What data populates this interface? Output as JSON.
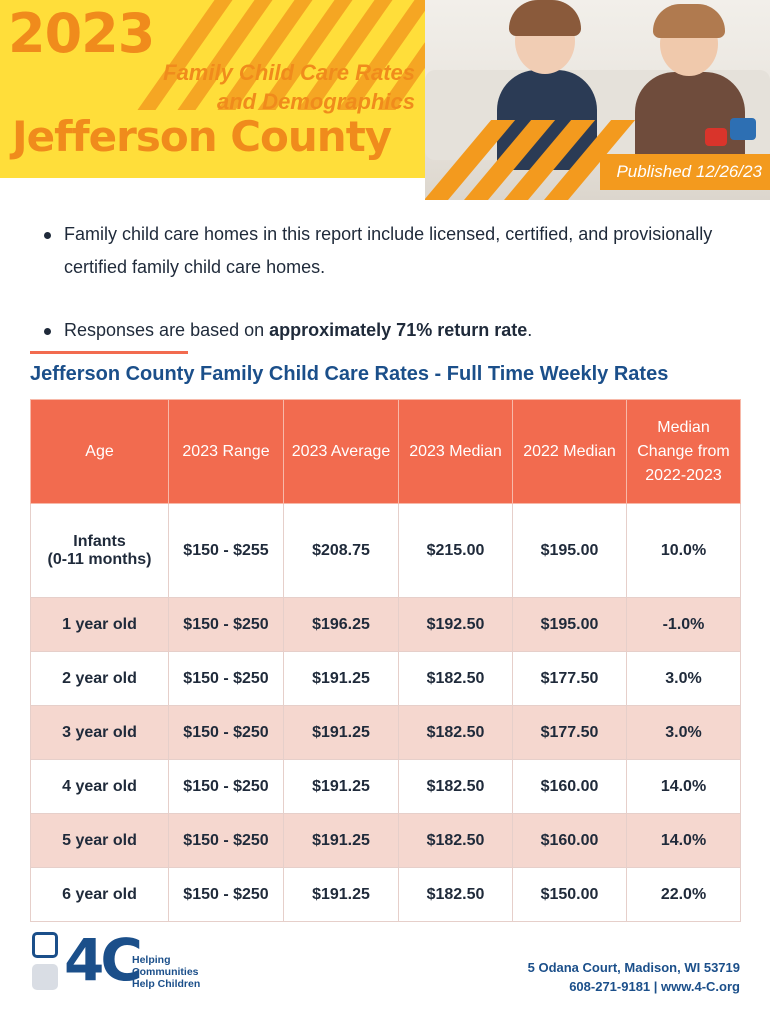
{
  "header": {
    "year": "2023",
    "subtitle_line1": "Family Child Care Rates",
    "subtitle_line2": "and Demographics",
    "county": "Jefferson County",
    "published": "Published 12/26/23"
  },
  "bullets": [
    {
      "text": "Family child care homes in this report include licensed, certified, and provisionally certified family child care homes."
    },
    {
      "prefix": "Responses are based on ",
      "bold": "approximately 71% return rate",
      "suffix": "."
    }
  ],
  "table": {
    "title": "Jefferson County Family Child Care Rates - Full Time Weekly Rates",
    "headers": [
      "Age",
      "2023 Range",
      "2023 Average",
      "2023 Median",
      "2022 Median",
      "Median Change from 2022-2023"
    ],
    "rows": [
      {
        "age_line1": "Infants",
        "age_line2": "(0-11 months)",
        "range": "$150 - $255",
        "average": "$208.75",
        "median_2023": "$215.00",
        "median_2022": "$195.00",
        "change": "10.0%"
      },
      {
        "age_line1": "1 year old",
        "range": "$150 - $250",
        "average": "$196.25",
        "median_2023": "$192.50",
        "median_2022": "$195.00",
        "change": "-1.0%"
      },
      {
        "age_line1": "2 year old",
        "range": "$150 - $250",
        "average": "$191.25",
        "median_2023": "$182.50",
        "median_2022": "$177.50",
        "change": "3.0%"
      },
      {
        "age_line1": "3 year old",
        "range": "$150 - $250",
        "average": "$191.25",
        "median_2023": "$182.50",
        "median_2022": "$177.50",
        "change": "3.0%"
      },
      {
        "age_line1": "4 year old",
        "range": "$150 - $250",
        "average": "$191.25",
        "median_2023": "$182.50",
        "median_2022": "$160.00",
        "change": "14.0%"
      },
      {
        "age_line1": "5 year old",
        "range": "$150 - $250",
        "average": "$191.25",
        "median_2023": "$182.50",
        "median_2022": "$160.00",
        "change": "14.0%"
      },
      {
        "age_line1": "6 year old",
        "range": "$150 - $250",
        "average": "$191.25",
        "median_2023": "$182.50",
        "median_2022": "$150.00",
        "change": "22.0%"
      }
    ]
  },
  "footer": {
    "logo_mark": "4C",
    "logo_line1": "Helping",
    "logo_line2": "Communities",
    "logo_line3": "Help Children",
    "address_line1": "5 Odana Court, Madison, WI 53719",
    "address_line2": "608-271-9181 | www.4-C.org"
  },
  "colors": {
    "orange": "#f39a1e",
    "yellow": "#ffde3a",
    "coral": "#f26b4f",
    "navy": "#1b4f8a",
    "row_alt": "#f5d7cf"
  }
}
